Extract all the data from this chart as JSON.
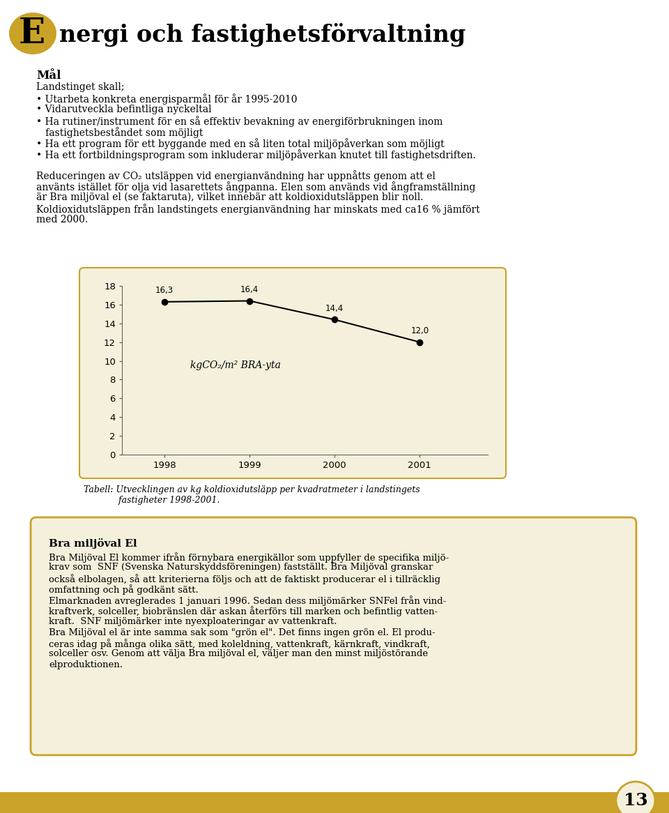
{
  "title_E": "E",
  "title_rest": "nergi och fastighetsförvaltning",
  "title_E_bg_color": "#C9A227",
  "page_bg": "#FFFFFF",
  "section_mal_title": "Mål",
  "chart_bg": "#F5F0DC",
  "chart_border": "#C9A227",
  "chart_years": [
    1998,
    1999,
    2000,
    2001
  ],
  "chart_values": [
    16.3,
    16.4,
    14.4,
    12.0
  ],
  "chart_annotations": [
    "16,3",
    "16,4",
    "14,4",
    "12,0"
  ],
  "chart_ylim": [
    0,
    18
  ],
  "chart_yticks": [
    0,
    2,
    4,
    6,
    8,
    10,
    12,
    14,
    16,
    18
  ],
  "chart_ylabel_text": "kgCO₂/m² BRA-yta",
  "chart_caption_line1": "Tabell: Utvecklingen av kg koldioxidutsläpp per kvadratmeter i landstingets",
  "chart_caption_line2": "       fastigheter 1998-2001.",
  "box_title": "Bra miljöval El",
  "box_bg": "#F5F0DC",
  "box_border": "#C9A227",
  "footer_color": "#C9A227",
  "footer_number": "13",
  "footer_circle_color": "#F5F0DC",
  "mal_lines": [
    "Landstinget skall;",
    "• Utarbeta konkreta energisparmål för år 1995-2010",
    "• Vidarutveckla befintliga nyckeltal",
    "• Ha rutiner/instrument för en så effektiv bevakning av energiförbrukningen inom",
    "   fastighetsbeståndet som möjligt",
    "• Ha ett program för ett byggande med en så liten total miljöpåverkan som möjligt",
    "• Ha ett fortbildningsprogram som inkluderar miljöpåverkan knutet till fastighetsdriften."
  ],
  "para_lines": [
    "Reduceringen av CO₂ utsläppen vid energianvändning har uppnåtts genom att el",
    "använts istället för olja vid lasarettets ångpanna. Elen som används vid ångframställning",
    "är Bra miljöval el (se faktaruta), vilket innebär att koldioxidutsläppen blir noll.",
    "Koldioxidutsläppen från landstingets energianvändning har minskats med ca16 % jämfört",
    "med 2000."
  ],
  "box_lines": [
    "Bra Miljöval El kommer ifrån förnybara energikällor som uppfyller de specifika miljö-",
    "krav som  SNF (Svenska Naturskyddsföreningen) fastställt. Bra Miljöval granskar",
    "också elbolagen, så att kriterierna följs och att de faktiskt producerar el i tillräcklig",
    "omfattning och på godkänt sätt.",
    "Elmarknaden avreglerades 1 januari 1996. Sedan dess miljömärker SNFel från vind-",
    "kraftverk, solceller, biobränslen där askan återförs till marken och befintlig vatten-",
    "kraft.  SNF miljömärker inte nyexploateringar av vattenkraft.",
    "Bra Miljöval el är inte samma sak som \"grön el\". Det finns ingen grön el. El produ-",
    "ceras idag på många olika sätt, med koleldning, vattenkraft, kärnkraft, vindkraft,",
    "solceller osv. Genom att välja Bra miljöval el, väljer man den minst miljöstörande",
    "elproduktionen."
  ]
}
